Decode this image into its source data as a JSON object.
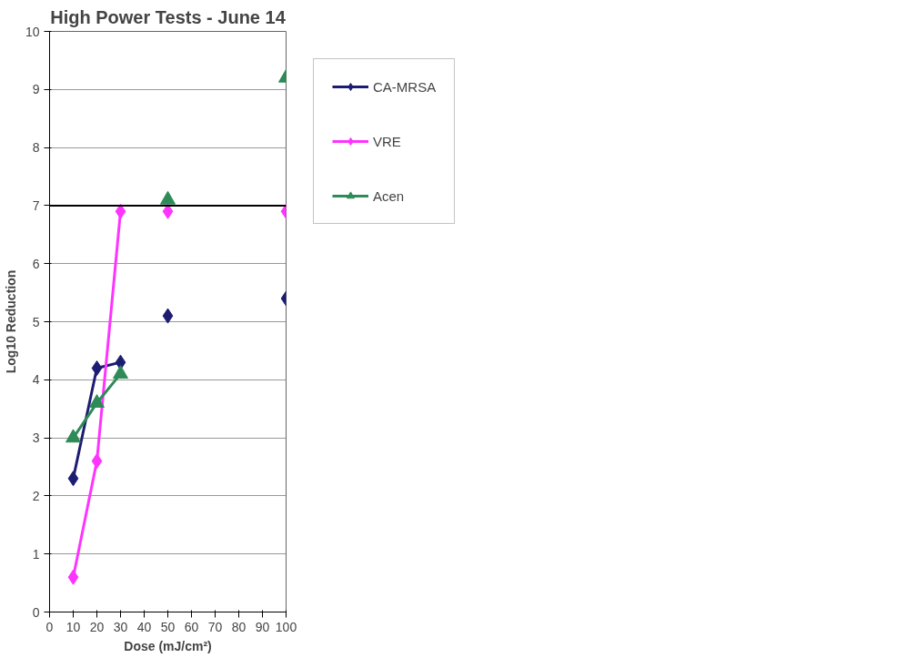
{
  "chart_data": {
    "type": "line",
    "title": "High Power Tests - June 14",
    "xlabel": "Dose (mJ/cm²)",
    "ylabel": "Log10 Reduction",
    "x": [
      10,
      20,
      30,
      40,
      50,
      60,
      70,
      80,
      90,
      100
    ],
    "series": [
      {
        "name": "CA-MRSA",
        "color": "#1c1c72",
        "marker": "diamond",
        "values": [
          2.3,
          4.2,
          4.3,
          null,
          5.1,
          null,
          null,
          null,
          null,
          5.4
        ]
      },
      {
        "name": "VRE",
        "color": "#ff33ff",
        "marker": "diamond",
        "values": [
          0.6,
          2.6,
          6.9,
          null,
          6.9,
          null,
          null,
          null,
          null,
          6.9
        ]
      },
      {
        "name": "Acen",
        "color": "#2e8b57",
        "marker": "triangle",
        "values": [
          3.0,
          3.6,
          4.1,
          null,
          7.1,
          null,
          null,
          null,
          null,
          9.2
        ]
      }
    ],
    "xlim": [
      0,
      100
    ],
    "xticks": [
      0,
      10,
      20,
      30,
      40,
      50,
      60,
      70,
      80,
      90,
      100
    ],
    "ylim": [
      0,
      10
    ],
    "yticks": [
      0,
      1,
      2,
      3,
      4,
      5,
      6,
      7,
      8,
      9,
      10
    ],
    "ref_lines": [
      {
        "axis": "y",
        "value": 7,
        "label": null,
        "color": "#000000"
      }
    ],
    "grid": "y",
    "legend": "right",
    "line_style": "solid"
  }
}
